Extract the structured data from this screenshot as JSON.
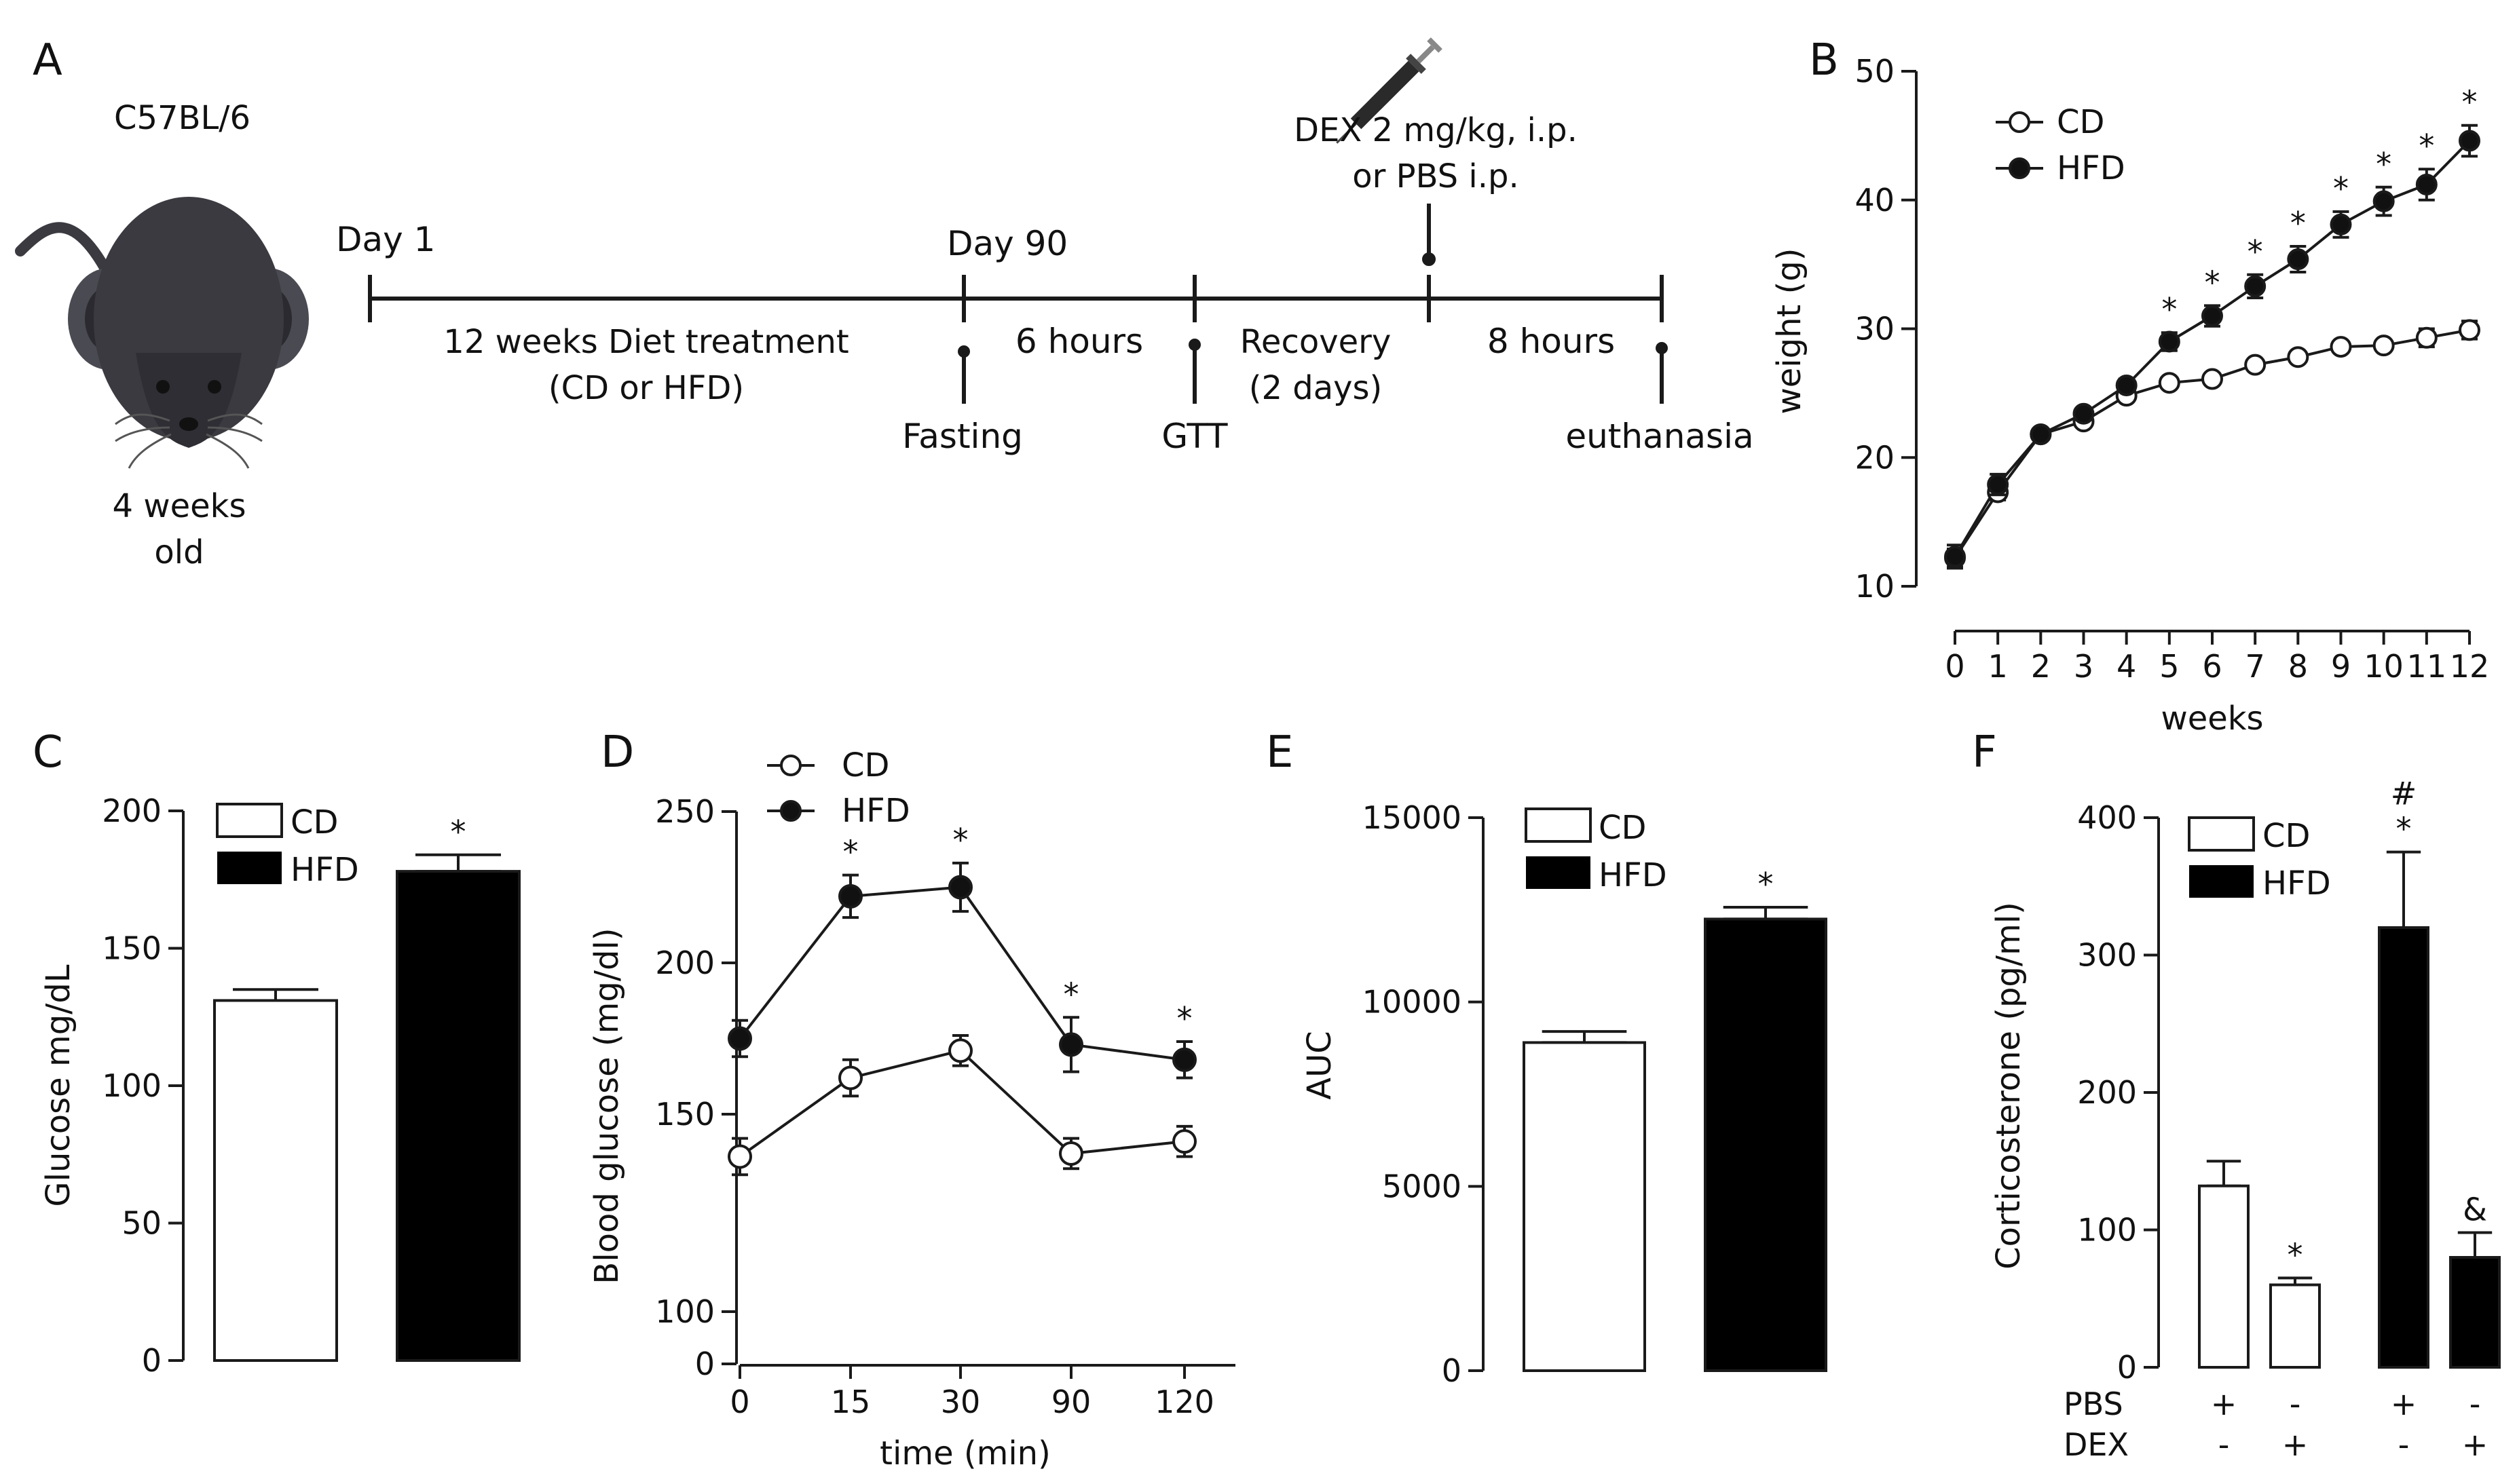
{
  "panels": {
    "A": {
      "letter": "A",
      "strain": "C57BL/6",
      "age": [
        "4 weeks",
        "old"
      ],
      "timeline": {
        "start_label": "Day 1",
        "day90_label": "Day 90",
        "diet_label": [
          "12 weeks Diet treatment",
          "(CD or HFD)"
        ],
        "fast_duration": "6 hours",
        "recovery": [
          "Recovery",
          "(2 days)"
        ],
        "post_duration": "8 hours",
        "injection": [
          "DEX 2 mg/kg, i.p.",
          "or PBS i.p."
        ],
        "events": [
          "Fasting",
          "GTT",
          "euthanasia"
        ]
      }
    },
    "B": {
      "letter": "B",
      "legend": [
        "CD",
        "HFD"
      ],
      "sig_marker": "*"
    },
    "C": {
      "letter": "C",
      "legend": [
        "CD",
        "HFD"
      ],
      "sig_marker": "*"
    },
    "D": {
      "letter": "D",
      "legend": [
        "CD",
        "HFD"
      ],
      "sig_marker": "*"
    },
    "E": {
      "letter": "E",
      "legend": [
        "CD",
        "HFD"
      ],
      "sig_marker": "*"
    },
    "F": {
      "letter": "F",
      "legend": [
        "CD",
        "HFD"
      ],
      "row_labels": [
        "PBS",
        "DEX"
      ],
      "pbs_signs": [
        "+",
        "-",
        "+",
        "-"
      ],
      "dex_signs": [
        "-",
        "+",
        "-",
        "+"
      ],
      "sig_markers": [
        "",
        "*",
        "#\n*",
        "&"
      ]
    }
  },
  "colors": {
    "cd_fill": "#ffffff",
    "hfd_fill": "#000000",
    "line": "#1a1a1a",
    "mouse": "#3a3a40"
  },
  "chart_data": [
    {
      "id": "B",
      "type": "line",
      "title": "",
      "xlabel": "weeks",
      "ylabel": "weight (g)",
      "x": [
        0,
        1,
        2,
        3,
        4,
        5,
        6,
        7,
        8,
        9,
        10,
        11,
        12
      ],
      "xticks": [
        "0",
        "1",
        "2",
        "3",
        "4",
        "5",
        "6",
        "7",
        "8",
        "9",
        "10",
        "11",
        "12"
      ],
      "ylim": [
        8,
        50
      ],
      "yticks": [
        10,
        20,
        30,
        40,
        50
      ],
      "series": [
        {
          "name": "CD",
          "marker": "open",
          "values": [
            12.2,
            17.3,
            21.8,
            22.8,
            24.8,
            25.8,
            26.1,
            27.2,
            27.8,
            28.6,
            28.7,
            29.3,
            29.9
          ],
          "err": [
            0.7,
            0.6,
            0.3,
            0.3,
            0.3,
            0.3,
            0.3,
            0.3,
            0.4,
            0.4,
            0.4,
            0.7,
            0.7
          ]
        },
        {
          "name": "HFD",
          "marker": "filled",
          "values": [
            12.3,
            17.9,
            21.8,
            23.4,
            25.6,
            29.0,
            31.0,
            33.3,
            35.4,
            38.1,
            39.9,
            41.2,
            44.6
          ],
          "err": [
            0.9,
            0.8,
            0.3,
            0.4,
            0.5,
            0.7,
            0.8,
            0.9,
            1.0,
            1.0,
            1.1,
            1.2,
            1.2
          ]
        }
      ],
      "significance": [
        0,
        0,
        0,
        0,
        0,
        1,
        1,
        1,
        1,
        1,
        1,
        1,
        1
      ]
    },
    {
      "id": "C",
      "type": "bar",
      "title": "",
      "xlabel": "",
      "ylabel": "Glucose mg/dL",
      "categories": [
        "CD",
        "HFD"
      ],
      "values": [
        131,
        178
      ],
      "err": [
        4,
        6
      ],
      "ylim": [
        0,
        200
      ],
      "yticks": [
        0,
        50,
        100,
        150,
        200
      ],
      "significance": [
        0,
        1
      ]
    },
    {
      "id": "D",
      "type": "line",
      "title": "",
      "xlabel": "time (min)",
      "ylabel": "Blood glucose (mg/dl)",
      "x": [
        0,
        15,
        30,
        90,
        120
      ],
      "xticks": [
        "0",
        "15",
        "30",
        "90",
        "120"
      ],
      "ylim": [
        0,
        250
      ],
      "yticks": [
        0,
        100,
        150,
        200,
        250
      ],
      "y_axis_break": [
        0,
        100
      ],
      "series": [
        {
          "name": "CD",
          "marker": "open",
          "values": [
            136,
            162,
            171,
            137,
            141
          ],
          "err": [
            6,
            6,
            5,
            5,
            5
          ]
        },
        {
          "name": "HFD",
          "marker": "filled",
          "values": [
            175,
            222,
            225,
            173,
            168
          ],
          "err": [
            6,
            7,
            8,
            9,
            6
          ]
        }
      ],
      "significance": [
        0,
        1,
        1,
        1,
        1
      ]
    },
    {
      "id": "E",
      "type": "bar",
      "title": "",
      "xlabel": "",
      "ylabel": "AUC",
      "categories": [
        "CD",
        "HFD"
      ],
      "values": [
        8900,
        12250
      ],
      "err": [
        300,
        320
      ],
      "ylim": [
        0,
        15000
      ],
      "yticks": [
        0,
        5000,
        10000,
        15000
      ],
      "significance": [
        0,
        1
      ]
    },
    {
      "id": "F",
      "type": "bar",
      "title": "",
      "xlabel": "",
      "ylabel": "Corticosterone (pg/ml)",
      "categories": [
        "CD PBS",
        "CD DEX",
        "HFD PBS",
        "HFD DEX"
      ],
      "groups": [
        "CD",
        "CD",
        "HFD",
        "HFD"
      ],
      "values": [
        132,
        60,
        320,
        80
      ],
      "err": [
        18,
        5,
        55,
        18
      ],
      "ylim": [
        0,
        400
      ],
      "yticks": [
        0,
        100,
        200,
        300,
        400
      ]
    }
  ]
}
